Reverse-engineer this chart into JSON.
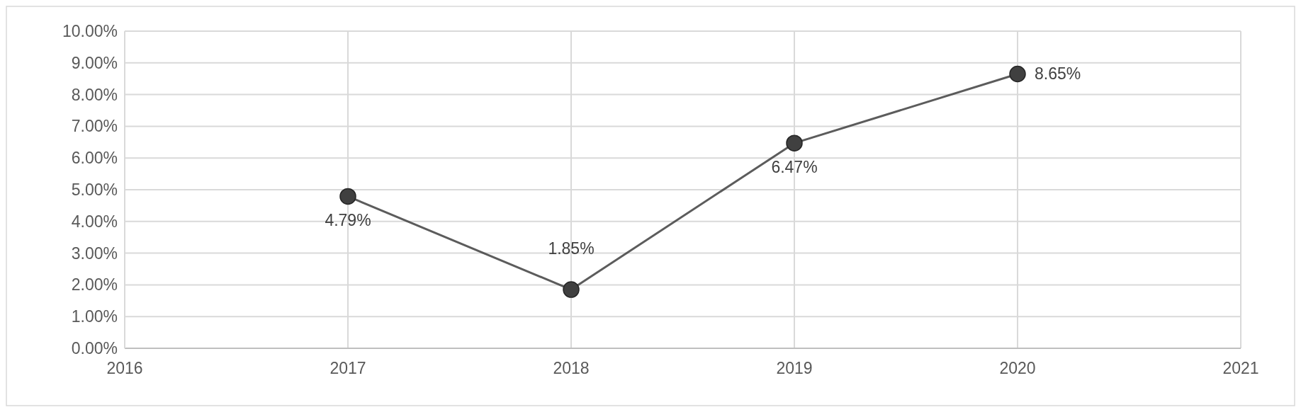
{
  "chart_data": {
    "type": "line",
    "x": [
      2017,
      2018,
      2019,
      2020
    ],
    "series": [
      {
        "color": "#404040",
        "values": [
          4.79,
          1.85,
          6.47,
          8.65
        ],
        "value_labels": [
          "4.79%",
          "1.85%",
          "6.47%",
          "8.65%"
        ]
      }
    ],
    "xlim": [
      2016,
      2021
    ],
    "xticks": [
      2016,
      2017,
      2018,
      2019,
      2020,
      2021
    ],
    "ylim": [
      0,
      10
    ],
    "yticks": [
      {
        "value": 0,
        "label": "0.00%"
      },
      {
        "value": 1,
        "label": "1.00%"
      },
      {
        "value": 2,
        "label": "2.00%"
      },
      {
        "value": 3,
        "label": "3.00%"
      },
      {
        "value": 4,
        "label": "4.00%"
      },
      {
        "value": 5,
        "label": "5.00%"
      },
      {
        "value": 6,
        "label": "6.00%"
      },
      {
        "value": 7,
        "label": "7.00%"
      },
      {
        "value": 8,
        "label": "8.00%"
      },
      {
        "value": 9,
        "label": "9.00%"
      },
      {
        "value": 10,
        "label": "10.00%"
      }
    ],
    "grid": true,
    "marker": "circle",
    "line_style": "solid"
  }
}
